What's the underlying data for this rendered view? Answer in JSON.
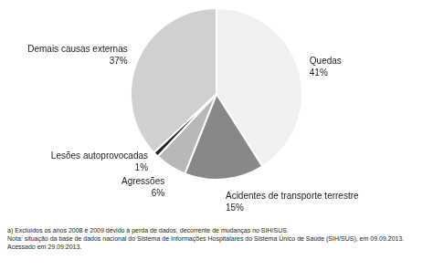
{
  "chart_data": {
    "type": "pie",
    "categories": [
      "Quedas",
      "Acidentes de transporte terrestre",
      "Agressões",
      "Lesões autoprovocadas",
      "Demais causas externas"
    ],
    "values": [
      41,
      15,
      6,
      1,
      37
    ],
    "value_labels": [
      "41%",
      "15%",
      "6%",
      "1%",
      "37%"
    ],
    "colors": [
      "#f0f0f0",
      "#888888",
      "#b8b8b8",
      "#222222",
      "#d0d0d0"
    ],
    "data_labels": true,
    "annotations": [
      "a) Excluídos os anos 2008 e 2009 devido à perda de dados, decorrente de mudanças no SIH/SUS.",
      "Nota: situação da base de dados nacional do Sistema de Informações Hospitalares do Sistema Único de Saúde (SIH/SUS), em 09.09.2013.",
      "Acessado em 29.09.2013."
    ]
  }
}
